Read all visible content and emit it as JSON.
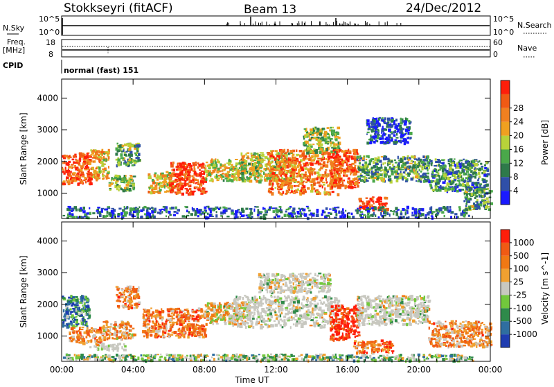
{
  "header": {
    "station": "Stokkseyri (fitACF)",
    "beam": "Beam 13",
    "date": "24/Dec/2012"
  },
  "panels": {
    "nsky_label": "N.Sky",
    "nsky_tick_top": "10^5",
    "nsky_tick_bottom": "10^0",
    "nsearch_label": "N.Search",
    "nsearch_tick_top": "10^5",
    "nsearch_tick_bottom": "10^0",
    "freq_label_top": "Freq.",
    "freq_label_unit": "[MHz]",
    "freq_tick_top": "18",
    "freq_tick_bottom": "8",
    "nave_label": "Nave",
    "nave_tick_top": "60",
    "nave_tick_bottom": "0",
    "cpid_label": "CPID",
    "cpid_value": "normal (fast) 151"
  },
  "colors": {
    "power_scale": [
      "#1a1aff",
      "#2f4fa8",
      "#2e7a4a",
      "#4aa84a",
      "#b8d23a",
      "#f0a020",
      "#f08020",
      "#f05a14",
      "#ff1e0a"
    ],
    "velocity_scale": [
      "#1f3cb0",
      "#2f6ea0",
      "#2e8a4a",
      "#72c83c",
      "#c8c8c0",
      "#f0a030",
      "#f07814",
      "#f05a14",
      "#ff1e0a"
    ]
  },
  "chart_data": [
    {
      "type": "heatmap",
      "name": "power",
      "ylabel": "Slant Range [km]",
      "xlabel": "",
      "x_tick_labels": [
        "00:00",
        "04:00",
        "08:00",
        "12:00",
        "16:00",
        "20:00",
        "00:00"
      ],
      "xlim_hours": [
        0,
        24
      ],
      "y_tick_labels": [
        "1000",
        "2000",
        "3000",
        "4000"
      ],
      "ylim": [
        200,
        4600
      ],
      "colorbar": {
        "label": "Power [dB]",
        "ticks": [
          "4",
          "8",
          "12",
          "16",
          "20",
          "24",
          "28"
        ],
        "range": [
          0,
          30
        ]
      },
      "regions": [
        {
          "t0": 0.0,
          "t1": 1.6,
          "r0": 1300,
          "r1": 2300,
          "level": 0.85
        },
        {
          "t0": 1.6,
          "t1": 2.6,
          "r0": 1450,
          "r1": 2400,
          "level": 0.6
        },
        {
          "t0": 2.6,
          "t1": 4.0,
          "r0": 1100,
          "r1": 1600,
          "level": 0.45
        },
        {
          "t0": 3.0,
          "t1": 4.3,
          "r0": 1900,
          "r1": 2600,
          "level": 0.35
        },
        {
          "t0": 4.8,
          "t1": 6.2,
          "r0": 1050,
          "r1": 1700,
          "level": 0.6
        },
        {
          "t0": 6.0,
          "t1": 8.0,
          "r0": 1000,
          "r1": 2000,
          "level": 0.9
        },
        {
          "t0": 8.0,
          "t1": 10.2,
          "r0": 1400,
          "r1": 2100,
          "level": 0.55
        },
        {
          "t0": 10.0,
          "t1": 13.0,
          "r0": 1400,
          "r1": 2300,
          "level": 0.5
        },
        {
          "t0": 11.5,
          "t1": 15.5,
          "r0": 1000,
          "r1": 2400,
          "level": 0.75
        },
        {
          "t0": 13.5,
          "t1": 15.5,
          "r0": 2300,
          "r1": 3100,
          "level": 0.45
        },
        {
          "t0": 15.0,
          "t1": 16.6,
          "r0": 1200,
          "r1": 2400,
          "level": 0.85
        },
        {
          "t0": 16.6,
          "t1": 18.2,
          "r0": 500,
          "r1": 900,
          "level": 0.9
        },
        {
          "t0": 16.5,
          "t1": 20.5,
          "r0": 1400,
          "r1": 2200,
          "level": 0.35
        },
        {
          "t0": 20.5,
          "t1": 23.8,
          "r0": 1100,
          "r1": 2100,
          "level": 0.3
        },
        {
          "t0": 17.0,
          "t1": 19.5,
          "r0": 2600,
          "r1": 3400,
          "level": 0.15
        },
        {
          "t0": 22.5,
          "t1": 24.0,
          "r0": 500,
          "r1": 1200,
          "level": 0.35
        },
        {
          "t0": 0.0,
          "t1": 23.0,
          "r0": 250,
          "r1": 600,
          "level": 0.2
        }
      ]
    },
    {
      "type": "heatmap",
      "name": "velocity",
      "ylabel": "Slant Range [km]",
      "xlabel": "Time UT",
      "x_tick_labels": [
        "00:00",
        "04:00",
        "08:00",
        "12:00",
        "16:00",
        "20:00",
        "00:00"
      ],
      "xlim_hours": [
        0,
        24
      ],
      "y_tick_labels": [
        "1000",
        "2000",
        "3000",
        "4000"
      ],
      "ylim": [
        200,
        4600
      ],
      "colorbar": {
        "label": "Velocity [m s^-1]",
        "ticks": [
          "1000",
          "500",
          "100",
          "25",
          "-25",
          "-100",
          "-500",
          "-1000"
        ]
      },
      "regions": [
        {
          "t0": 0.0,
          "t1": 1.5,
          "r0": 1300,
          "r1": 2300,
          "level": 0.25
        },
        {
          "t0": 0.4,
          "t1": 2.2,
          "r0": 800,
          "r1": 1300,
          "level": 0.7
        },
        {
          "t0": 2.2,
          "t1": 4.0,
          "r0": 900,
          "r1": 1500,
          "level": 0.65
        },
        {
          "t0": 3.0,
          "t1": 4.3,
          "r0": 1900,
          "r1": 2600,
          "level": 0.7
        },
        {
          "t0": 4.5,
          "t1": 8.0,
          "r0": 1000,
          "r1": 1900,
          "level": 0.72
        },
        {
          "t0": 8.0,
          "t1": 10.5,
          "r0": 1400,
          "r1": 2100,
          "level": 0.55
        },
        {
          "t0": 9.5,
          "t1": 15.5,
          "r0": 1300,
          "r1": 2300,
          "level": 0.48
        },
        {
          "t0": 11.0,
          "t1": 15.0,
          "r0": 2400,
          "r1": 3000,
          "level": 0.5
        },
        {
          "t0": 15.0,
          "t1": 16.6,
          "r0": 900,
          "r1": 2000,
          "level": 0.95
        },
        {
          "t0": 16.3,
          "t1": 18.5,
          "r0": 500,
          "r1": 900,
          "level": 0.75
        },
        {
          "t0": 16.5,
          "t1": 20.5,
          "r0": 1400,
          "r1": 2300,
          "level": 0.5
        },
        {
          "t0": 20.5,
          "t1": 24.0,
          "r0": 700,
          "r1": 1500,
          "level": 0.68
        },
        {
          "t0": 1.5,
          "t1": 3.5,
          "r0": 600,
          "r1": 800,
          "level": 0.5
        },
        {
          "t0": 0.0,
          "t1": 23.0,
          "r0": 250,
          "r1": 450,
          "level": 0.4
        }
      ]
    }
  ]
}
